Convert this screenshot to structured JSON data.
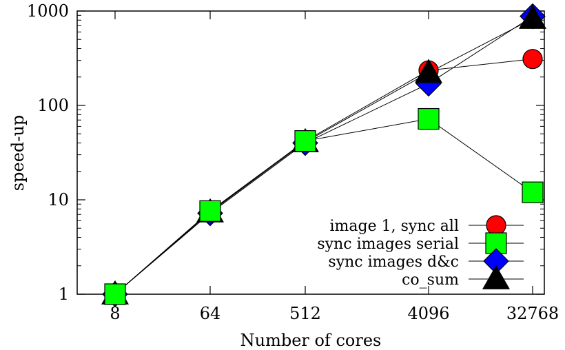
{
  "chart_data": {
    "type": "line",
    "title": "",
    "xlabel": "Number of cores",
    "ylabel": "speed-up",
    "x_scale": "log2",
    "y_scale": "log10",
    "x": [
      8,
      64,
      512,
      4096,
      32768
    ],
    "x_tick_labels": [
      "8",
      "64",
      "512",
      "4096",
      "32768"
    ],
    "y_ticks": [
      1,
      10,
      100,
      1000
    ],
    "y_tick_labels": [
      "1",
      "10",
      "100",
      "1000"
    ],
    "ylim": [
      1,
      1000
    ],
    "xlim_labels": [
      "8",
      "32768"
    ],
    "grid": false,
    "legend_position": "bottom-right",
    "series": [
      {
        "name": "image 1, sync all",
        "marker": "circle",
        "color": "#ff0000",
        "values": [
          1,
          7.5,
          42,
          235,
          310
        ]
      },
      {
        "name": "sync images serial",
        "marker": "square",
        "color": "#00ff00",
        "values": [
          1,
          7.6,
          42,
          72,
          12
        ]
      },
      {
        "name": "sync images d&c",
        "marker": "diamond",
        "color": "#0000ff",
        "values": [
          1,
          7.2,
          40,
          170,
          880
        ]
      },
      {
        "name": "co_sum",
        "marker": "triangle",
        "color": "#000000",
        "values": [
          1,
          7.4,
          41,
          222,
          830
        ]
      }
    ],
    "draw_order": [
      0,
      2,
      3,
      1
    ]
  }
}
